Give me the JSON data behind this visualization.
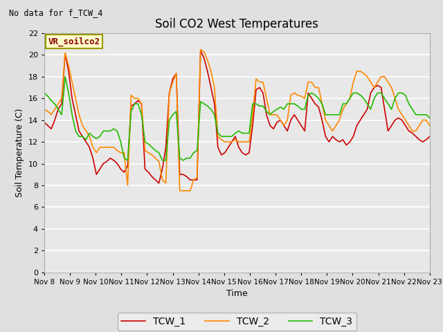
{
  "title": "Soil CO2 West Temperatures",
  "subtitle": "No data for f_TCW_4",
  "xlabel": "Time",
  "ylabel": "Soil Temperature (C)",
  "annotation_label": "VR_soilco2",
  "ylim": [
    0,
    22
  ],
  "yticks": [
    0,
    2,
    4,
    6,
    8,
    10,
    12,
    14,
    16,
    18,
    20,
    22
  ],
  "xtick_labels": [
    "Nov 8",
    "Nov 9",
    "Nov 10",
    "Nov 11",
    "Nov 12",
    "Nov 13",
    "Nov 14",
    "Nov 15",
    "Nov 16",
    "Nov 17",
    "Nov 18",
    "Nov 19",
    "Nov 20",
    "Nov 21",
    "Nov 22",
    "Nov 23"
  ],
  "bg_color": "#e0e0e0",
  "plot_bg_color": "#e8e8e8",
  "grid_color": "white",
  "legend_entries": [
    "TCW_1",
    "TCW_2",
    "TCW_3"
  ],
  "line_colors": [
    "#cc0000",
    "#ff8800",
    "#22bb00"
  ],
  "line_width": 1.2,
  "TCW_1_y": [
    13.8,
    13.5,
    13.2,
    14.0,
    15.0,
    15.5,
    20.1,
    18.5,
    16.0,
    14.5,
    13.0,
    12.5,
    12.0,
    11.5,
    10.5,
    9.0,
    9.5,
    10.0,
    10.2,
    10.5,
    10.3,
    10.0,
    9.5,
    9.2,
    9.8,
    15.3,
    15.5,
    15.8,
    15.5,
    9.5,
    9.2,
    8.8,
    8.5,
    8.2,
    9.5,
    11.5,
    16.5,
    17.8,
    18.3,
    9.0,
    9.0,
    8.8,
    8.5,
    8.5,
    8.5,
    20.4,
    19.7,
    18.5,
    17.0,
    15.5,
    11.5,
    10.8,
    11.0,
    11.5,
    12.0,
    12.5,
    11.5,
    11.0,
    10.8,
    11.0,
    13.5,
    16.8,
    17.0,
    16.5,
    14.5,
    13.5,
    13.2,
    13.8,
    14.0,
    13.5,
    13.0,
    14.0,
    14.5,
    14.0,
    13.5,
    13.0,
    16.5,
    16.0,
    15.5,
    15.2,
    14.0,
    12.5,
    12.0,
    12.5,
    12.2,
    12.0,
    12.2,
    11.7,
    12.0,
    12.5,
    13.5,
    14.0,
    14.5,
    15.0,
    16.5,
    17.0,
    17.2,
    17.0,
    15.0,
    13.0,
    13.5,
    14.0,
    14.2,
    14.0,
    13.5,
    13.0,
    12.8,
    12.5,
    12.2,
    12.0,
    12.2,
    12.5
  ],
  "TCW_2_y": [
    15.0,
    14.8,
    14.5,
    15.0,
    15.5,
    16.0,
    20.2,
    19.0,
    17.5,
    16.0,
    14.5,
    13.5,
    13.0,
    12.5,
    11.5,
    11.0,
    11.5,
    11.5,
    11.5,
    11.5,
    11.5,
    11.2,
    11.0,
    11.0,
    8.0,
    16.3,
    16.0,
    16.0,
    15.5,
    11.2,
    11.0,
    10.8,
    10.5,
    10.2,
    8.5,
    8.2,
    16.5,
    17.5,
    18.3,
    7.5,
    7.5,
    7.5,
    7.5,
    8.5,
    8.7,
    20.5,
    20.3,
    19.5,
    18.5,
    17.0,
    12.5,
    12.2,
    12.0,
    12.0,
    12.0,
    12.2,
    12.0,
    12.0,
    12.0,
    12.0,
    14.5,
    17.8,
    17.5,
    17.5,
    16.0,
    14.5,
    14.5,
    14.5,
    14.0,
    13.5,
    14.0,
    16.3,
    16.5,
    16.3,
    16.2,
    16.0,
    17.5,
    17.5,
    17.0,
    17.0,
    15.5,
    14.0,
    13.5,
    13.0,
    13.5,
    14.0,
    15.0,
    15.5,
    16.0,
    17.5,
    18.5,
    18.5,
    18.3,
    18.0,
    17.5,
    17.0,
    17.5,
    18.0,
    18.0,
    17.5,
    17.0,
    16.0,
    15.0,
    14.5,
    14.0,
    13.5,
    13.0,
    13.0,
    13.5,
    14.0,
    14.0,
    13.5
  ],
  "TCW_3_y": [
    16.5,
    16.2,
    15.8,
    15.5,
    15.0,
    14.5,
    18.0,
    16.5,
    14.5,
    13.0,
    12.5,
    12.5,
    12.2,
    12.8,
    12.5,
    12.3,
    12.5,
    13.0,
    13.0,
    13.0,
    13.2,
    13.0,
    12.0,
    10.5,
    10.3,
    14.8,
    15.5,
    15.5,
    14.5,
    12.0,
    11.8,
    11.5,
    11.2,
    11.0,
    10.3,
    10.3,
    14.0,
    14.5,
    14.8,
    10.5,
    10.3,
    10.5,
    10.5,
    11.0,
    11.2,
    15.7,
    15.5,
    15.3,
    15.0,
    14.5,
    12.8,
    12.5,
    12.5,
    12.5,
    12.5,
    12.8,
    13.0,
    12.8,
    12.8,
    12.8,
    15.5,
    15.5,
    15.3,
    15.3,
    14.8,
    14.5,
    14.8,
    15.0,
    15.2,
    15.0,
    15.5,
    15.5,
    15.5,
    15.3,
    15.0,
    15.0,
    16.3,
    16.5,
    16.3,
    16.0,
    15.5,
    14.5,
    14.5,
    14.5,
    14.5,
    14.5,
    15.5,
    15.5,
    16.0,
    16.5,
    16.5,
    16.3,
    16.0,
    15.5,
    15.0,
    16.0,
    16.5,
    16.5,
    16.0,
    15.5,
    15.0,
    16.0,
    16.5,
    16.5,
    16.3,
    15.5,
    15.0,
    14.5,
    14.5,
    14.5,
    14.5,
    14.2
  ]
}
